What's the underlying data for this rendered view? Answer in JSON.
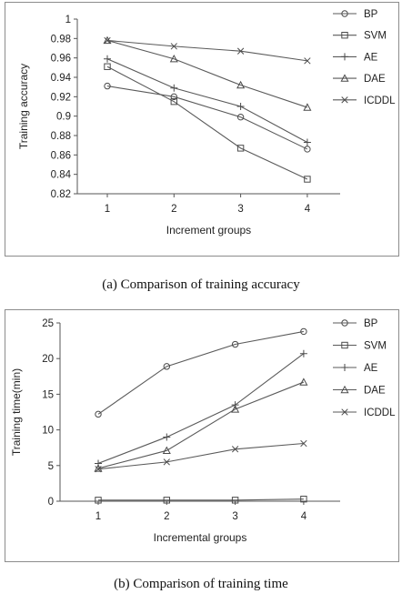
{
  "figure": {
    "caption_a": "(a) Comparison of training accuracy",
    "caption_b": "(b) Comparison of training time"
  },
  "chart_data": [
    {
      "type": "line",
      "x": [
        1,
        2,
        3,
        4
      ],
      "xlabel": "Increment groups",
      "ylabel": "Training accuracy",
      "ylim": [
        0.82,
        1.0
      ],
      "yticks": [
        0.82,
        0.84,
        0.86,
        0.88,
        0.9,
        0.92,
        0.94,
        0.96,
        0.98,
        1
      ],
      "ytick_labels": [
        "0.82",
        "0.84",
        "0.86",
        "0.88",
        "0.9",
        "0.92",
        "0.94",
        "0.96",
        "0.98",
        "1"
      ],
      "grid": false,
      "legend": "right",
      "series": [
        {
          "name": "BP",
          "marker": "circle",
          "values": [
            0.931,
            0.92,
            0.899,
            0.866
          ]
        },
        {
          "name": "SVM",
          "marker": "square",
          "values": [
            0.951,
            0.915,
            0.867,
            0.835
          ]
        },
        {
          "name": "AE",
          "marker": "plus",
          "values": [
            0.959,
            0.929,
            0.91,
            0.873
          ]
        },
        {
          "name": "DAE",
          "marker": "triangle",
          "values": [
            0.978,
            0.959,
            0.932,
            0.909
          ]
        },
        {
          "name": "ICDDL",
          "marker": "x",
          "values": [
            0.978,
            0.972,
            0.967,
            0.957
          ]
        }
      ]
    },
    {
      "type": "line",
      "x": [
        1,
        2,
        3,
        4
      ],
      "xlabel": "Incremental groups",
      "ylabel": "Training time(min)",
      "ylim": [
        0,
        25
      ],
      "yticks": [
        0,
        5,
        10,
        15,
        20,
        25
      ],
      "ytick_labels": [
        "0",
        "5",
        "10",
        "15",
        "20",
        "25"
      ],
      "grid": false,
      "legend": "right",
      "series": [
        {
          "name": "BP",
          "marker": "circle",
          "values": [
            12.2,
            18.9,
            22.0,
            23.8
          ]
        },
        {
          "name": "SVM",
          "marker": "square",
          "values": [
            0.15,
            0.15,
            0.15,
            0.3
          ]
        },
        {
          "name": "AE",
          "marker": "plus",
          "values": [
            5.3,
            9.0,
            13.5,
            20.7
          ]
        },
        {
          "name": "DAE",
          "marker": "triangle",
          "values": [
            4.6,
            7.1,
            12.9,
            16.7
          ]
        },
        {
          "name": "ICDDL",
          "marker": "x",
          "values": [
            4.5,
            5.5,
            7.3,
            8.1
          ]
        }
      ]
    }
  ]
}
